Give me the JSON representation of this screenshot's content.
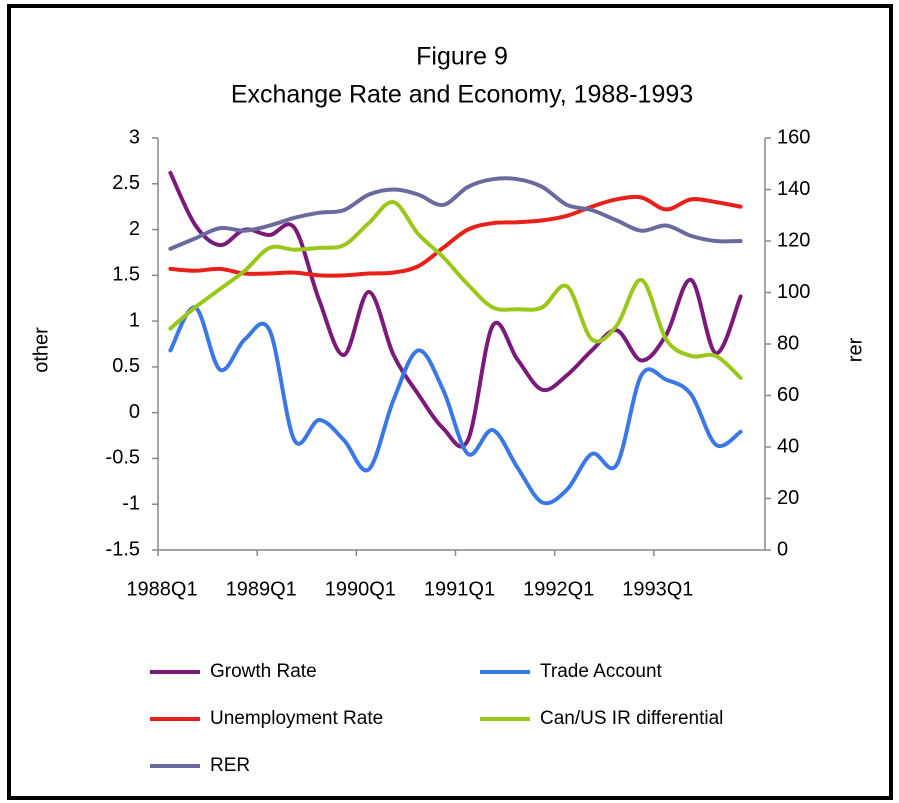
{
  "chart_data": {
    "type": "line",
    "title": "Figure 9",
    "subtitle": "Exchange Rate and Economy, 1988-1993",
    "y_label": "other",
    "y2_label": "rer",
    "categories": [
      "1988Q1",
      null,
      null,
      null,
      "1989Q1",
      null,
      null,
      null,
      "1990Q1",
      null,
      null,
      null,
      "1991Q1",
      null,
      null,
      null,
      "1992Q1",
      null,
      null,
      null,
      "1993Q1",
      null,
      null,
      null
    ],
    "ylim": [
      -1.5,
      3
    ],
    "yticks": [
      3,
      2.5,
      2,
      1.5,
      1,
      0.5,
      0,
      -0.5,
      -1,
      -1.5
    ],
    "y2lim": [
      0,
      160
    ],
    "y2ticks": [
      160,
      140,
      120,
      100,
      80,
      60,
      40,
      20,
      0
    ],
    "series": [
      {
        "name": "Growth Rate",
        "color": "#7b1a7b",
        "values": [
          2.62,
          2.05,
          1.83,
          2.0,
          1.94,
          2.02,
          1.23,
          0.63,
          1.32,
          0.63,
          0.2,
          -0.17,
          -0.3,
          0.95,
          0.58,
          0.25,
          0.41,
          0.68,
          0.9,
          0.57,
          0.85,
          1.45,
          0.65,
          1.27
        ]
      },
      {
        "name": "Trade Account",
        "color": "#3a78e6",
        "values": [
          0.68,
          1.15,
          0.47,
          0.8,
          0.9,
          -0.3,
          -0.08,
          -0.3,
          -0.62,
          0.14,
          0.68,
          0.25,
          -0.45,
          -0.19,
          -0.6,
          -0.98,
          -0.84,
          -0.45,
          -0.57,
          0.41,
          0.36,
          0.2,
          -0.35,
          -0.21
        ]
      },
      {
        "name": "Unemployment Rate",
        "color": "#e8201a",
        "values": [
          1.57,
          1.55,
          1.57,
          1.52,
          1.52,
          1.53,
          1.5,
          1.5,
          1.52,
          1.53,
          1.6,
          1.8,
          2.0,
          2.07,
          2.08,
          2.1,
          2.15,
          2.25,
          2.33,
          2.35,
          2.22,
          2.33,
          2.3,
          2.25
        ]
      },
      {
        "name": "Can/US IR differential",
        "color": "#9ac81a",
        "values": [
          0.92,
          1.15,
          1.35,
          1.55,
          1.8,
          1.78,
          1.8,
          1.83,
          2.07,
          2.3,
          1.95,
          1.7,
          1.4,
          1.15,
          1.13,
          1.15,
          1.38,
          0.8,
          0.95,
          1.45,
          0.8,
          0.62,
          0.62,
          0.38
        ]
      },
      {
        "name": "RER",
        "color": "#6a6a9e",
        "axis": "y2",
        "values": [
          117,
          121,
          125,
          124,
          126,
          129,
          131,
          132,
          138,
          140,
          138,
          134,
          141,
          144,
          144,
          141,
          134,
          132,
          128,
          124,
          126,
          122,
          120,
          120
        ]
      }
    ],
    "legend": "bottom"
  }
}
